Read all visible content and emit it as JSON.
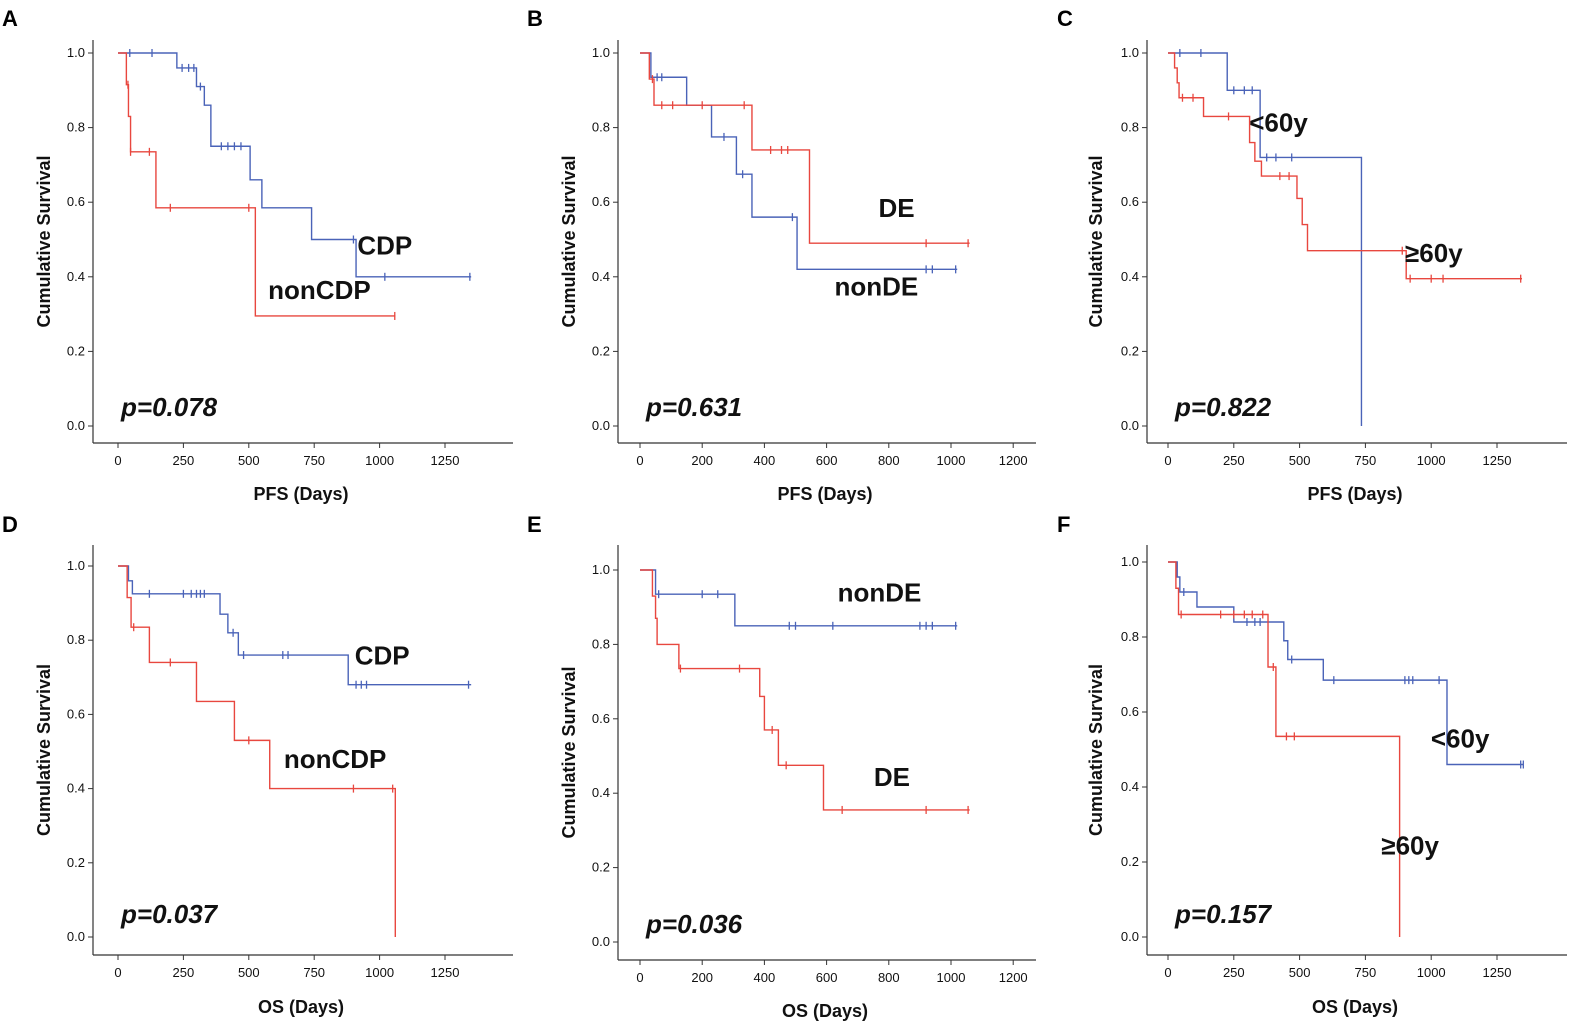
{
  "colors": {
    "blue": "#4a63b8",
    "red": "#e8473f",
    "axis": "#333333"
  },
  "chart_data": [
    {
      "type": "line",
      "panel": "A",
      "xlabel": "PFS (Days)",
      "ylabel": "Cumulative Survival",
      "xlim": [
        0,
        1400
      ],
      "ylim": [
        0,
        1.05
      ],
      "xticks": [
        0,
        250,
        500,
        750,
        1000,
        1250
      ],
      "yticks": [
        0.0,
        0.2,
        0.4,
        0.6,
        0.8,
        1.0
      ],
      "p_value": "p=0.078",
      "series": [
        {
          "name": "CDP",
          "color": "blue",
          "steps": [
            [
              0,
              1.0
            ],
            [
              225,
              0.96
            ],
            [
              300,
              0.91
            ],
            [
              330,
              0.86
            ],
            [
              355,
              0.75
            ],
            [
              505,
              0.66
            ],
            [
              550,
              0.585
            ],
            [
              740,
              0.5
            ],
            [
              910,
              0.4
            ],
            [
              1350,
              0.4
            ]
          ],
          "censors": [
            [
              45,
              1.0
            ],
            [
              130,
              1.0
            ],
            [
              245,
              0.96
            ],
            [
              270,
              0.96
            ],
            [
              290,
              0.96
            ],
            [
              315,
              0.91
            ],
            [
              395,
              0.75
            ],
            [
              420,
              0.75
            ],
            [
              445,
              0.75
            ],
            [
              470,
              0.75
            ],
            [
              900,
              0.5
            ],
            [
              1020,
              0.4
            ],
            [
              1345,
              0.4
            ]
          ]
        },
        {
          "name": "nonCDP",
          "color": "red",
          "steps": [
            [
              0,
              1.0
            ],
            [
              32,
              0.915
            ],
            [
              40,
              0.83
            ],
            [
              48,
              0.735
            ],
            [
              145,
              0.585
            ],
            [
              525,
              0.295
            ],
            [
              1060,
              0.295
            ]
          ],
          "censors": [
            [
              38,
              0.915
            ],
            [
              48,
              0.735
            ],
            [
              120,
              0.735
            ],
            [
              200,
              0.585
            ],
            [
              500,
              0.585
            ],
            [
              1058,
              0.295
            ]
          ]
        }
      ],
      "annotations": [
        {
          "text": "CDP",
          "x": 1020,
          "y": 0.46
        },
        {
          "text": "nonCDP",
          "x": 770,
          "y": 0.34
        }
      ]
    },
    {
      "type": "line",
      "panel": "B",
      "xlabel": "PFS (Days)",
      "ylabel": "Cumulative Survival",
      "xlim": [
        0,
        1250
      ],
      "ylim": [
        0,
        1.05
      ],
      "xticks": [
        0,
        200,
        400,
        600,
        800,
        1000,
        1200
      ],
      "yticks": [
        0.0,
        0.2,
        0.4,
        0.6,
        0.8,
        1.0
      ],
      "p_value": "p=0.631",
      "series": [
        {
          "name": "nonDE",
          "color": "blue",
          "steps": [
            [
              0,
              1.0
            ],
            [
              35,
              0.935
            ],
            [
              150,
              0.86
            ],
            [
              230,
              0.775
            ],
            [
              310,
              0.675
            ],
            [
              360,
              0.56
            ],
            [
              505,
              0.42
            ],
            [
              1020,
              0.42
            ]
          ],
          "censors": [
            [
              55,
              0.935
            ],
            [
              70,
              0.935
            ],
            [
              270,
              0.775
            ],
            [
              330,
              0.675
            ],
            [
              490,
              0.56
            ],
            [
              920,
              0.42
            ],
            [
              940,
              0.42
            ],
            [
              1015,
              0.42
            ]
          ]
        },
        {
          "name": "DE",
          "color": "red",
          "steps": [
            [
              0,
              1.0
            ],
            [
              30,
              0.93
            ],
            [
              45,
              0.86
            ],
            [
              360,
              0.74
            ],
            [
              545,
              0.49
            ],
            [
              1060,
              0.49
            ]
          ],
          "censors": [
            [
              40,
              0.93
            ],
            [
              70,
              0.86
            ],
            [
              105,
              0.86
            ],
            [
              200,
              0.86
            ],
            [
              335,
              0.86
            ],
            [
              420,
              0.74
            ],
            [
              455,
              0.74
            ],
            [
              475,
              0.74
            ],
            [
              920,
              0.49
            ],
            [
              1055,
              0.49
            ]
          ]
        }
      ],
      "annotations": [
        {
          "text": "DE",
          "x": 825,
          "y": 0.56
        },
        {
          "text": "nonDE",
          "x": 760,
          "y": 0.35
        }
      ]
    },
    {
      "type": "line",
      "panel": "C",
      "xlabel": "PFS (Days)",
      "ylabel": "Cumulative Survival",
      "xlim": [
        0,
        1400
      ],
      "ylim": [
        0,
        1.05
      ],
      "xticks": [
        0,
        250,
        500,
        750,
        1000,
        1250
      ],
      "yticks": [
        0.0,
        0.2,
        0.4,
        0.6,
        0.8,
        1.0
      ],
      "p_value": "p=0.822",
      "series": [
        {
          "name": "<60y",
          "color": "blue",
          "steps": [
            [
              0,
              1.0
            ],
            [
              225,
              0.9
            ],
            [
              350,
              0.72
            ],
            [
              735,
              0.0
            ]
          ],
          "censors": [
            [
              45,
              1.0
            ],
            [
              125,
              1.0
            ],
            [
              250,
              0.9
            ],
            [
              290,
              0.9
            ],
            [
              320,
              0.9
            ],
            [
              375,
              0.72
            ],
            [
              410,
              0.72
            ],
            [
              470,
              0.72
            ]
          ]
        },
        {
          "name": "≥60y",
          "color": "red",
          "steps": [
            [
              0,
              1.0
            ],
            [
              25,
              0.96
            ],
            [
              35,
              0.92
            ],
            [
              42,
              0.88
            ],
            [
              135,
              0.83
            ],
            [
              310,
              0.76
            ],
            [
              330,
              0.71
            ],
            [
              355,
              0.67
            ],
            [
              490,
              0.61
            ],
            [
              510,
              0.54
            ],
            [
              530,
              0.47
            ],
            [
              905,
              0.395
            ],
            [
              1345,
              0.395
            ]
          ],
          "censors": [
            [
              55,
              0.88
            ],
            [
              95,
              0.88
            ],
            [
              230,
              0.83
            ],
            [
              425,
              0.67
            ],
            [
              460,
              0.67
            ],
            [
              890,
              0.47
            ],
            [
              920,
              0.395
            ],
            [
              1000,
              0.395
            ],
            [
              1045,
              0.395
            ],
            [
              1340,
              0.395
            ]
          ]
        }
      ],
      "annotations": [
        {
          "text": "<60y",
          "x": 420,
          "y": 0.79
        },
        {
          "text": "≥60y",
          "x": 1010,
          "y": 0.44
        }
      ]
    },
    {
      "type": "line",
      "panel": "D",
      "xlabel": "OS (Days)",
      "ylabel": "Cumulative Survival",
      "xlim": [
        0,
        1400
      ],
      "ylim": [
        0,
        1.05
      ],
      "xticks": [
        0,
        250,
        500,
        750,
        1000,
        1250
      ],
      "yticks": [
        0.0,
        0.2,
        0.4,
        0.6,
        0.8,
        1.0
      ],
      "p_value": "p=0.037",
      "series": [
        {
          "name": "CDP",
          "color": "blue",
          "steps": [
            [
              0,
              1.0
            ],
            [
              40,
              0.96
            ],
            [
              55,
              0.925
            ],
            [
              390,
              0.87
            ],
            [
              420,
              0.82
            ],
            [
              460,
              0.76
            ],
            [
              880,
              0.68
            ],
            [
              1350,
              0.68
            ]
          ],
          "censors": [
            [
              120,
              0.925
            ],
            [
              250,
              0.925
            ],
            [
              280,
              0.925
            ],
            [
              300,
              0.925
            ],
            [
              315,
              0.925
            ],
            [
              330,
              0.925
            ],
            [
              440,
              0.82
            ],
            [
              480,
              0.76
            ],
            [
              630,
              0.76
            ],
            [
              650,
              0.76
            ],
            [
              910,
              0.68
            ],
            [
              930,
              0.68
            ],
            [
              950,
              0.68
            ],
            [
              1340,
              0.68
            ]
          ]
        },
        {
          "name": "nonCDP",
          "color": "red",
          "steps": [
            [
              0,
              1.0
            ],
            [
              35,
              0.915
            ],
            [
              50,
              0.835
            ],
            [
              120,
              0.74
            ],
            [
              300,
              0.635
            ],
            [
              445,
              0.53
            ],
            [
              580,
              0.4
            ],
            [
              1060,
              0.0
            ]
          ],
          "censors": [
            [
              60,
              0.835
            ],
            [
              200,
              0.74
            ],
            [
              500,
              0.53
            ],
            [
              900,
              0.4
            ],
            [
              1050,
              0.4
            ]
          ]
        }
      ],
      "annotations": [
        {
          "text": "CDP",
          "x": 1010,
          "y": 0.735
        },
        {
          "text": "nonCDP",
          "x": 830,
          "y": 0.455
        }
      ]
    },
    {
      "type": "line",
      "panel": "E",
      "xlabel": "OS (Days)",
      "ylabel": "Cumulative Survival",
      "xlim": [
        0,
        1250
      ],
      "ylim": [
        0,
        1.05
      ],
      "xticks": [
        0,
        200,
        400,
        600,
        800,
        1000,
        1200
      ],
      "yticks": [
        0.0,
        0.2,
        0.4,
        0.6,
        0.8,
        1.0
      ],
      "p_value": "p=0.036",
      "series": [
        {
          "name": "nonDE",
          "color": "blue",
          "steps": [
            [
              0,
              1.0
            ],
            [
              50,
              0.935
            ],
            [
              305,
              0.85
            ],
            [
              1020,
              0.85
            ]
          ],
          "censors": [
            [
              60,
              0.935
            ],
            [
              200,
              0.935
            ],
            [
              250,
              0.935
            ],
            [
              480,
              0.85
            ],
            [
              500,
              0.85
            ],
            [
              620,
              0.85
            ],
            [
              900,
              0.85
            ],
            [
              920,
              0.85
            ],
            [
              940,
              0.85
            ],
            [
              1015,
              0.85
            ]
          ]
        },
        {
          "name": "DE",
          "color": "red",
          "steps": [
            [
              0,
              1.0
            ],
            [
              40,
              0.93
            ],
            [
              50,
              0.87
            ],
            [
              55,
              0.8
            ],
            [
              125,
              0.735
            ],
            [
              385,
              0.66
            ],
            [
              400,
              0.57
            ],
            [
              445,
              0.475
            ],
            [
              590,
              0.355
            ],
            [
              1060,
              0.355
            ]
          ],
          "censors": [
            [
              130,
              0.735
            ],
            [
              320,
              0.735
            ],
            [
              425,
              0.57
            ],
            [
              470,
              0.475
            ],
            [
              650,
              0.355
            ],
            [
              920,
              0.355
            ],
            [
              1055,
              0.355
            ]
          ]
        }
      ],
      "annotations": [
        {
          "text": "nonDE",
          "x": 770,
          "y": 0.915
        },
        {
          "text": "DE",
          "x": 810,
          "y": 0.42
        }
      ]
    },
    {
      "type": "line",
      "panel": "F",
      "xlabel": "OS (Days)",
      "ylabel": "Cumulative Survival",
      "xlim": [
        0,
        1400
      ],
      "ylim": [
        0,
        1.05
      ],
      "xticks": [
        0,
        250,
        500,
        750,
        1000,
        1250
      ],
      "yticks": [
        0.0,
        0.2,
        0.4,
        0.6,
        0.8,
        1.0
      ],
      "p_value": "p=0.157",
      "series": [
        {
          "name": "<60y",
          "color": "blue",
          "steps": [
            [
              0,
              1.0
            ],
            [
              35,
              0.96
            ],
            [
              45,
              0.92
            ],
            [
              110,
              0.88
            ],
            [
              250,
              0.84
            ],
            [
              440,
              0.79
            ],
            [
              455,
              0.74
            ],
            [
              590,
              0.685
            ],
            [
              1060,
              0.46
            ],
            [
              1350,
              0.46
            ]
          ],
          "censors": [
            [
              60,
              0.92
            ],
            [
              300,
              0.84
            ],
            [
              330,
              0.84
            ],
            [
              350,
              0.84
            ],
            [
              470,
              0.74
            ],
            [
              630,
              0.685
            ],
            [
              900,
              0.685
            ],
            [
              915,
              0.685
            ],
            [
              930,
              0.685
            ],
            [
              1030,
              0.685
            ],
            [
              1340,
              0.46
            ],
            [
              1350,
              0.46
            ]
          ]
        },
        {
          "name": "≥60y",
          "color": "red",
          "steps": [
            [
              0,
              1.0
            ],
            [
              30,
              0.93
            ],
            [
              40,
              0.86
            ],
            [
              380,
              0.72
            ],
            [
              410,
              0.535
            ],
            [
              880,
              0.0
            ]
          ],
          "censors": [
            [
              50,
              0.86
            ],
            [
              200,
              0.86
            ],
            [
              250,
              0.86
            ],
            [
              290,
              0.86
            ],
            [
              320,
              0.86
            ],
            [
              360,
              0.86
            ],
            [
              400,
              0.72
            ],
            [
              450,
              0.535
            ],
            [
              480,
              0.535
            ]
          ]
        }
      ],
      "annotations": [
        {
          "text": "<60y",
          "x": 1110,
          "y": 0.505
        },
        {
          "text": "≥60y",
          "x": 920,
          "y": 0.22
        }
      ]
    }
  ]
}
